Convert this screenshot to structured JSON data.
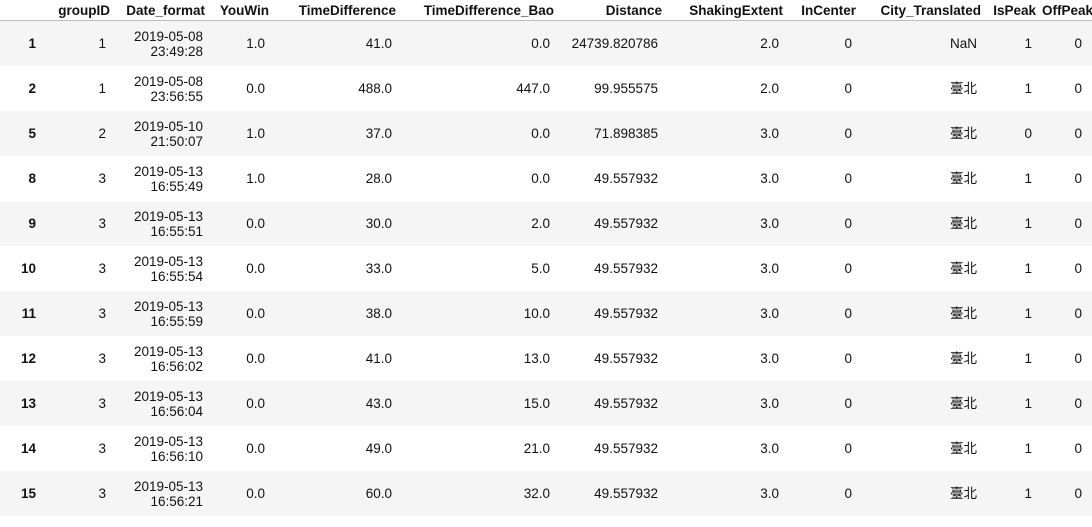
{
  "columns": {
    "index": "",
    "groupID": "groupID",
    "date_format": "Date_format",
    "youwin": "YouWin",
    "time_difference": "TimeDifference",
    "time_difference_bao": "TimeDifference_Bao",
    "distance": "Distance",
    "shaking_extent": "ShakingExtent",
    "in_center": "InCenter",
    "city_translated": "City_Translated",
    "is_peak": "IsPeak",
    "off_peak": "OffPeak"
  },
  "rows": [
    {
      "index": "1",
      "groupID": "1",
      "date": "2019-05-08",
      "time": "23:49:28",
      "youwin": "1.0",
      "time_difference": "41.0",
      "time_difference_bao": "0.0",
      "distance": "24739.820786",
      "shaking_extent": "2.0",
      "in_center": "0",
      "city_translated": "NaN",
      "is_peak": "1",
      "off_peak": "0"
    },
    {
      "index": "2",
      "groupID": "1",
      "date": "2019-05-08",
      "time": "23:56:55",
      "youwin": "0.0",
      "time_difference": "488.0",
      "time_difference_bao": "447.0",
      "distance": "99.955575",
      "shaking_extent": "2.0",
      "in_center": "0",
      "city_translated": "臺北",
      "is_peak": "1",
      "off_peak": "0"
    },
    {
      "index": "5",
      "groupID": "2",
      "date": "2019-05-10",
      "time": "21:50:07",
      "youwin": "1.0",
      "time_difference": "37.0",
      "time_difference_bao": "0.0",
      "distance": "71.898385",
      "shaking_extent": "3.0",
      "in_center": "0",
      "city_translated": "臺北",
      "is_peak": "0",
      "off_peak": "0"
    },
    {
      "index": "8",
      "groupID": "3",
      "date": "2019-05-13",
      "time": "16:55:49",
      "youwin": "1.0",
      "time_difference": "28.0",
      "time_difference_bao": "0.0",
      "distance": "49.557932",
      "shaking_extent": "3.0",
      "in_center": "0",
      "city_translated": "臺北",
      "is_peak": "1",
      "off_peak": "0"
    },
    {
      "index": "9",
      "groupID": "3",
      "date": "2019-05-13",
      "time": "16:55:51",
      "youwin": "0.0",
      "time_difference": "30.0",
      "time_difference_bao": "2.0",
      "distance": "49.557932",
      "shaking_extent": "3.0",
      "in_center": "0",
      "city_translated": "臺北",
      "is_peak": "1",
      "off_peak": "0"
    },
    {
      "index": "10",
      "groupID": "3",
      "date": "2019-05-13",
      "time": "16:55:54",
      "youwin": "0.0",
      "time_difference": "33.0",
      "time_difference_bao": "5.0",
      "distance": "49.557932",
      "shaking_extent": "3.0",
      "in_center": "0",
      "city_translated": "臺北",
      "is_peak": "1",
      "off_peak": "0"
    },
    {
      "index": "11",
      "groupID": "3",
      "date": "2019-05-13",
      "time": "16:55:59",
      "youwin": "0.0",
      "time_difference": "38.0",
      "time_difference_bao": "10.0",
      "distance": "49.557932",
      "shaking_extent": "3.0",
      "in_center": "0",
      "city_translated": "臺北",
      "is_peak": "1",
      "off_peak": "0"
    },
    {
      "index": "12",
      "groupID": "3",
      "date": "2019-05-13",
      "time": "16:56:02",
      "youwin": "0.0",
      "time_difference": "41.0",
      "time_difference_bao": "13.0",
      "distance": "49.557932",
      "shaking_extent": "3.0",
      "in_center": "0",
      "city_translated": "臺北",
      "is_peak": "1",
      "off_peak": "0"
    },
    {
      "index": "13",
      "groupID": "3",
      "date": "2019-05-13",
      "time": "16:56:04",
      "youwin": "0.0",
      "time_difference": "43.0",
      "time_difference_bao": "15.0",
      "distance": "49.557932",
      "shaking_extent": "3.0",
      "in_center": "0",
      "city_translated": "臺北",
      "is_peak": "1",
      "off_peak": "0"
    },
    {
      "index": "14",
      "groupID": "3",
      "date": "2019-05-13",
      "time": "16:56:10",
      "youwin": "0.0",
      "time_difference": "49.0",
      "time_difference_bao": "21.0",
      "distance": "49.557932",
      "shaking_extent": "3.0",
      "in_center": "0",
      "city_translated": "臺北",
      "is_peak": "1",
      "off_peak": "0"
    },
    {
      "index": "15",
      "groupID": "3",
      "date": "2019-05-13",
      "time": "16:56:21",
      "youwin": "0.0",
      "time_difference": "60.0",
      "time_difference_bao": "32.0",
      "distance": "49.557932",
      "shaking_extent": "3.0",
      "in_center": "0",
      "city_translated": "臺北",
      "is_peak": "1",
      "off_peak": "0"
    }
  ]
}
